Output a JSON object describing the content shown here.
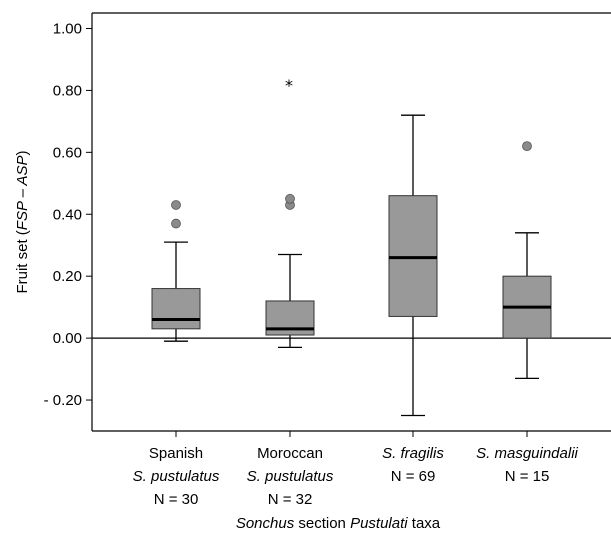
{
  "chart_data": {
    "type": "boxplot",
    "y_axis": {
      "label_prefix": "Fruit set (",
      "label_italic": "FSP – ASP",
      "label_suffix": ")",
      "range": [
        -0.3,
        1.05
      ],
      "ticks": [
        1.0,
        0.8,
        0.6,
        0.4,
        0.2,
        0.0,
        -0.2
      ],
      "tick_labels": [
        "1.00",
        "0.80",
        "0.60",
        "0.40",
        "0.20",
        "0.00",
        "- 0.20"
      ]
    },
    "x_axis": {
      "label_part1_italic": "Sonchus",
      "label_part2": " section ",
      "label_part3_italic": "Pustulati",
      "label_part4": " taxa"
    },
    "reference_line": 0.0,
    "colors": {
      "box_fill": "#999999",
      "outlier_fill": "#8a8a8a",
      "axis": "#000000"
    },
    "groups": [
      {
        "line1": "Spanish",
        "line2": "S. pustulatus",
        "n": "N = 30",
        "stats": {
          "min": -0.01,
          "q1": 0.03,
          "median": 0.06,
          "q3": 0.16,
          "max": 0.31
        },
        "outliers_circle": [
          0.37,
          0.43
        ],
        "outliers_star": []
      },
      {
        "line1": "Moroccan",
        "line2": "S. pustulatus",
        "n": "N = 32",
        "stats": {
          "min": -0.03,
          "q1": 0.01,
          "median": 0.03,
          "q3": 0.12,
          "max": 0.27
        },
        "outliers_circle": [
          0.43,
          0.45
        ],
        "outliers_star": [
          0.82
        ]
      },
      {
        "line1": "",
        "line2": "S. fragilis",
        "n": "N = 69",
        "stats": {
          "min": -0.25,
          "q1": 0.07,
          "median": 0.26,
          "q3": 0.46,
          "max": 0.72
        },
        "outliers_circle": [],
        "outliers_star": []
      },
      {
        "line1": "",
        "line2": "S. masguindalii",
        "n": "N = 15",
        "stats": {
          "min": -0.13,
          "q1": 0.0,
          "median": 0.1,
          "q3": 0.2,
          "max": 0.34
        },
        "outliers_circle": [
          0.62
        ],
        "outliers_star": []
      }
    ]
  }
}
